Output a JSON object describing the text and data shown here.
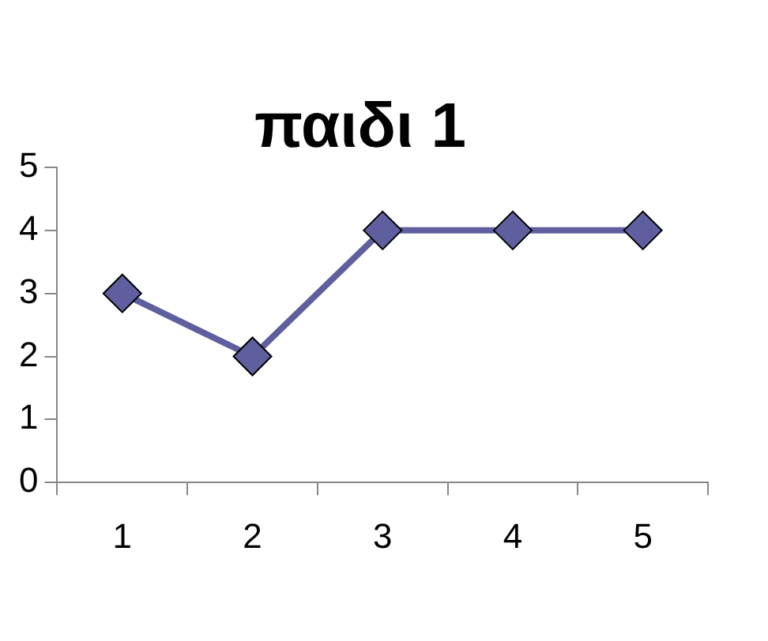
{
  "chart_data": {
    "type": "line",
    "title": "παιδι 1",
    "categories": [
      "1",
      "2",
      "3",
      "4",
      "5"
    ],
    "series": [
      {
        "color": "#5f5f9f",
        "values": [
          3,
          2,
          4,
          4,
          4
        ]
      }
    ],
    "ylim": [
      0,
      5
    ],
    "yticks": [
      0,
      1,
      2,
      3,
      4,
      5
    ],
    "grid": false,
    "legend": false,
    "marker": "diamond",
    "line_style": "solid"
  }
}
